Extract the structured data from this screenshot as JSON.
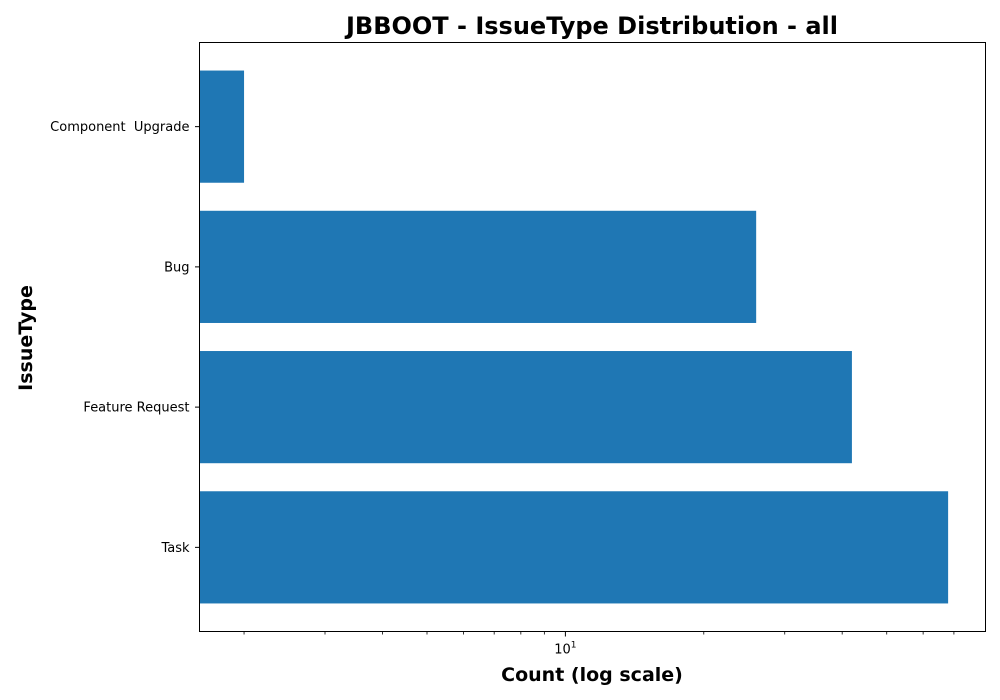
{
  "chart_data": {
    "type": "bar",
    "orientation": "horizontal",
    "title": "JBBOOT - IssueType Distribution - all",
    "xlabel": "Count (log scale)",
    "ylabel": "IssueType",
    "x_scale": "log",
    "xlim": [
      1.6,
      82
    ],
    "xticks_major": [
      {
        "value": 10,
        "label_base": "10",
        "label_exp": "1"
      }
    ],
    "xticks_minor": [
      2,
      3,
      4,
      5,
      6,
      7,
      8,
      9,
      20,
      30,
      40,
      50,
      60,
      70
    ],
    "categories": [
      "Component  Upgrade",
      "Bug",
      "Feature Request",
      "Task"
    ],
    "values": [
      2,
      26,
      42,
      68
    ],
    "bar_color": "#1f77b4",
    "grid": false,
    "legend": "none"
  }
}
